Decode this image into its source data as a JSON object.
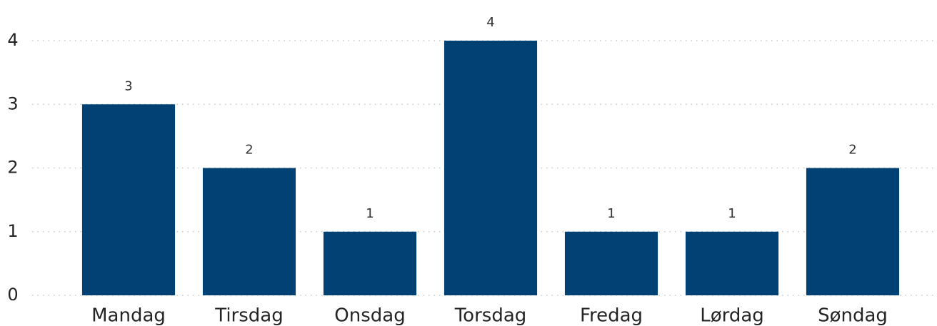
{
  "chart_data": {
    "type": "bar",
    "categories": [
      "Mandag",
      "Tirsdag",
      "Onsdag",
      "Torsdag",
      "Fredag",
      "Lørdag",
      "Søndag"
    ],
    "values": [
      3,
      2,
      1,
      4,
      1,
      1,
      2
    ],
    "color": "#024174",
    "ylim": [
      0,
      4
    ],
    "yticks": [
      0,
      1,
      2,
      3,
      4
    ],
    "grid": true,
    "data_labels": true
  }
}
